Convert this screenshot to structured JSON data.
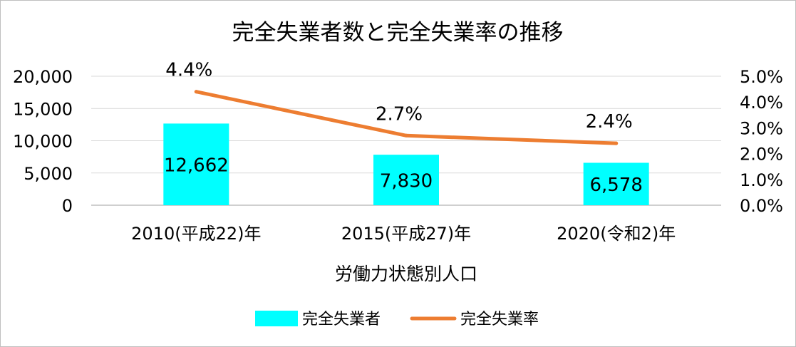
{
  "chart_data": {
    "type": "bar",
    "title": "完全失業者数と完全失業率の推移",
    "xlabel": "労働力状態別人口",
    "ylabel": "",
    "categories": [
      "2010(平成22)年",
      "2015(平成27)年",
      "2020(令和2)年"
    ],
    "series": [
      {
        "name": "完全失業者",
        "type": "bar",
        "axis": "left",
        "values": [
          12662,
          7830,
          6578
        ],
        "labels": [
          "12,662",
          "7,830",
          "6,578"
        ],
        "color": "#00ffff"
      },
      {
        "name": "完全失業率",
        "type": "line",
        "axis": "right",
        "values": [
          4.4,
          2.7,
          2.4
        ],
        "labels": [
          "4.4%",
          "2.7%",
          "2.4%"
        ],
        "color": "#ed7d31"
      }
    ],
    "ylim": [
      0,
      20000
    ],
    "y_ticks": [
      "0",
      "5,000",
      "10,000",
      "15,000",
      "20,000"
    ],
    "y2lim": [
      0,
      5
    ],
    "y2_ticks": [
      "0.0%",
      "1.0%",
      "2.0%",
      "3.0%",
      "4.0%",
      "5.0%"
    ],
    "grid": true,
    "legend_position": "bottom",
    "colors": {
      "grid": "#d9d9d9",
      "axis": "#bfbfbf"
    }
  }
}
